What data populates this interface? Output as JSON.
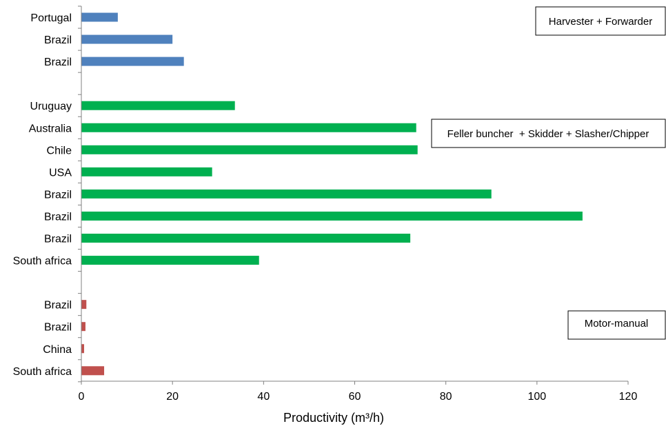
{
  "chart_data": {
    "type": "bar",
    "orientation": "horizontal",
    "xlabel": "Productivity (m³/h)",
    "xlim": [
      0,
      120
    ],
    "xticks": [
      0,
      20,
      40,
      60,
      80,
      100,
      120
    ],
    "grid": false,
    "groups": [
      {
        "name": "Harvester + Forwarder",
        "color": "#4f81bd",
        "bars": [
          {
            "category": "Portugal",
            "value": 8
          },
          {
            "category": "Brazil",
            "value": 20
          },
          {
            "category": "Brazil",
            "value": 22.5
          }
        ]
      },
      {
        "name": "Feller buncher  + Skidder + Slasher/Chipper",
        "color": "#00b050",
        "bars": [
          {
            "category": "Uruguay",
            "value": 33.7
          },
          {
            "category": "Australia",
            "value": 73.5
          },
          {
            "category": "Chile",
            "value": 73.8
          },
          {
            "category": "USA",
            "value": 28.7
          },
          {
            "category": "Brazil",
            "value": 90
          },
          {
            "category": "Brazil",
            "value": 110
          },
          {
            "category": "Brazil",
            "value": 72.2
          },
          {
            "category": "South africa",
            "value": 39
          }
        ]
      },
      {
        "name": "Motor-manual",
        "color": "#c0504d",
        "bars": [
          {
            "category": "Brazil",
            "value": 1.1
          },
          {
            "category": "Brazil",
            "value": 0.9
          },
          {
            "category": "China",
            "value": 0.6
          },
          {
            "category": "South africa",
            "value": 5
          }
        ]
      }
    ]
  }
}
